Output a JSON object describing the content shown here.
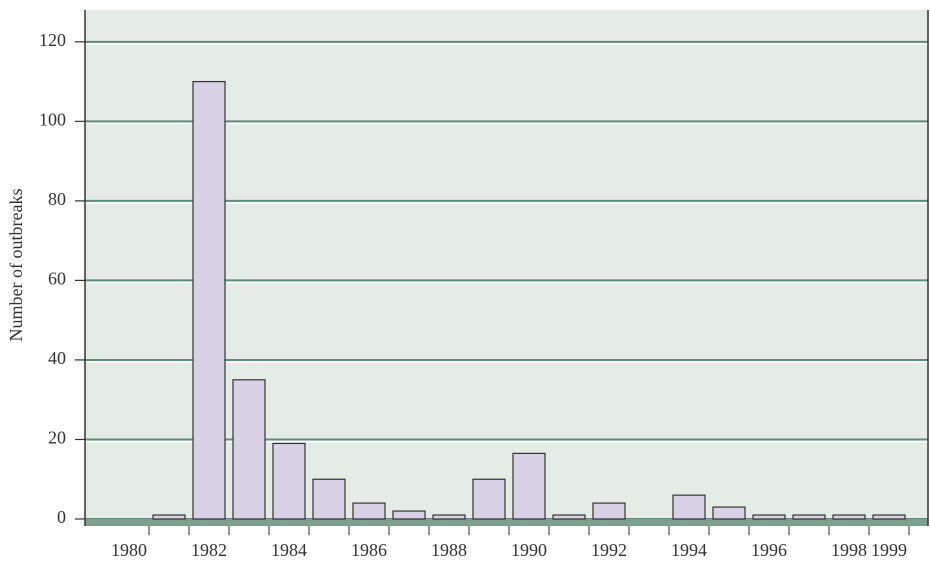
{
  "chart_data": {
    "type": "bar",
    "y_label": "Number of outbreaks",
    "categories": [
      "1980",
      null,
      "1982",
      null,
      "1984",
      null,
      "1986",
      null,
      "1988",
      null,
      "1990",
      null,
      "1992",
      null,
      "1994",
      null,
      "1996",
      null,
      "1998",
      "1999"
    ],
    "values": [
      0,
      1,
      110,
      35,
      19,
      10,
      4,
      2,
      1,
      10,
      16.5,
      1,
      4,
      0,
      6,
      3,
      1,
      1,
      1,
      1
    ],
    "color": "#d9d1e6",
    "ylim": [
      0,
      128
    ],
    "yticks": [
      0,
      20,
      40,
      60,
      80,
      100,
      120
    ],
    "grid": true
  }
}
